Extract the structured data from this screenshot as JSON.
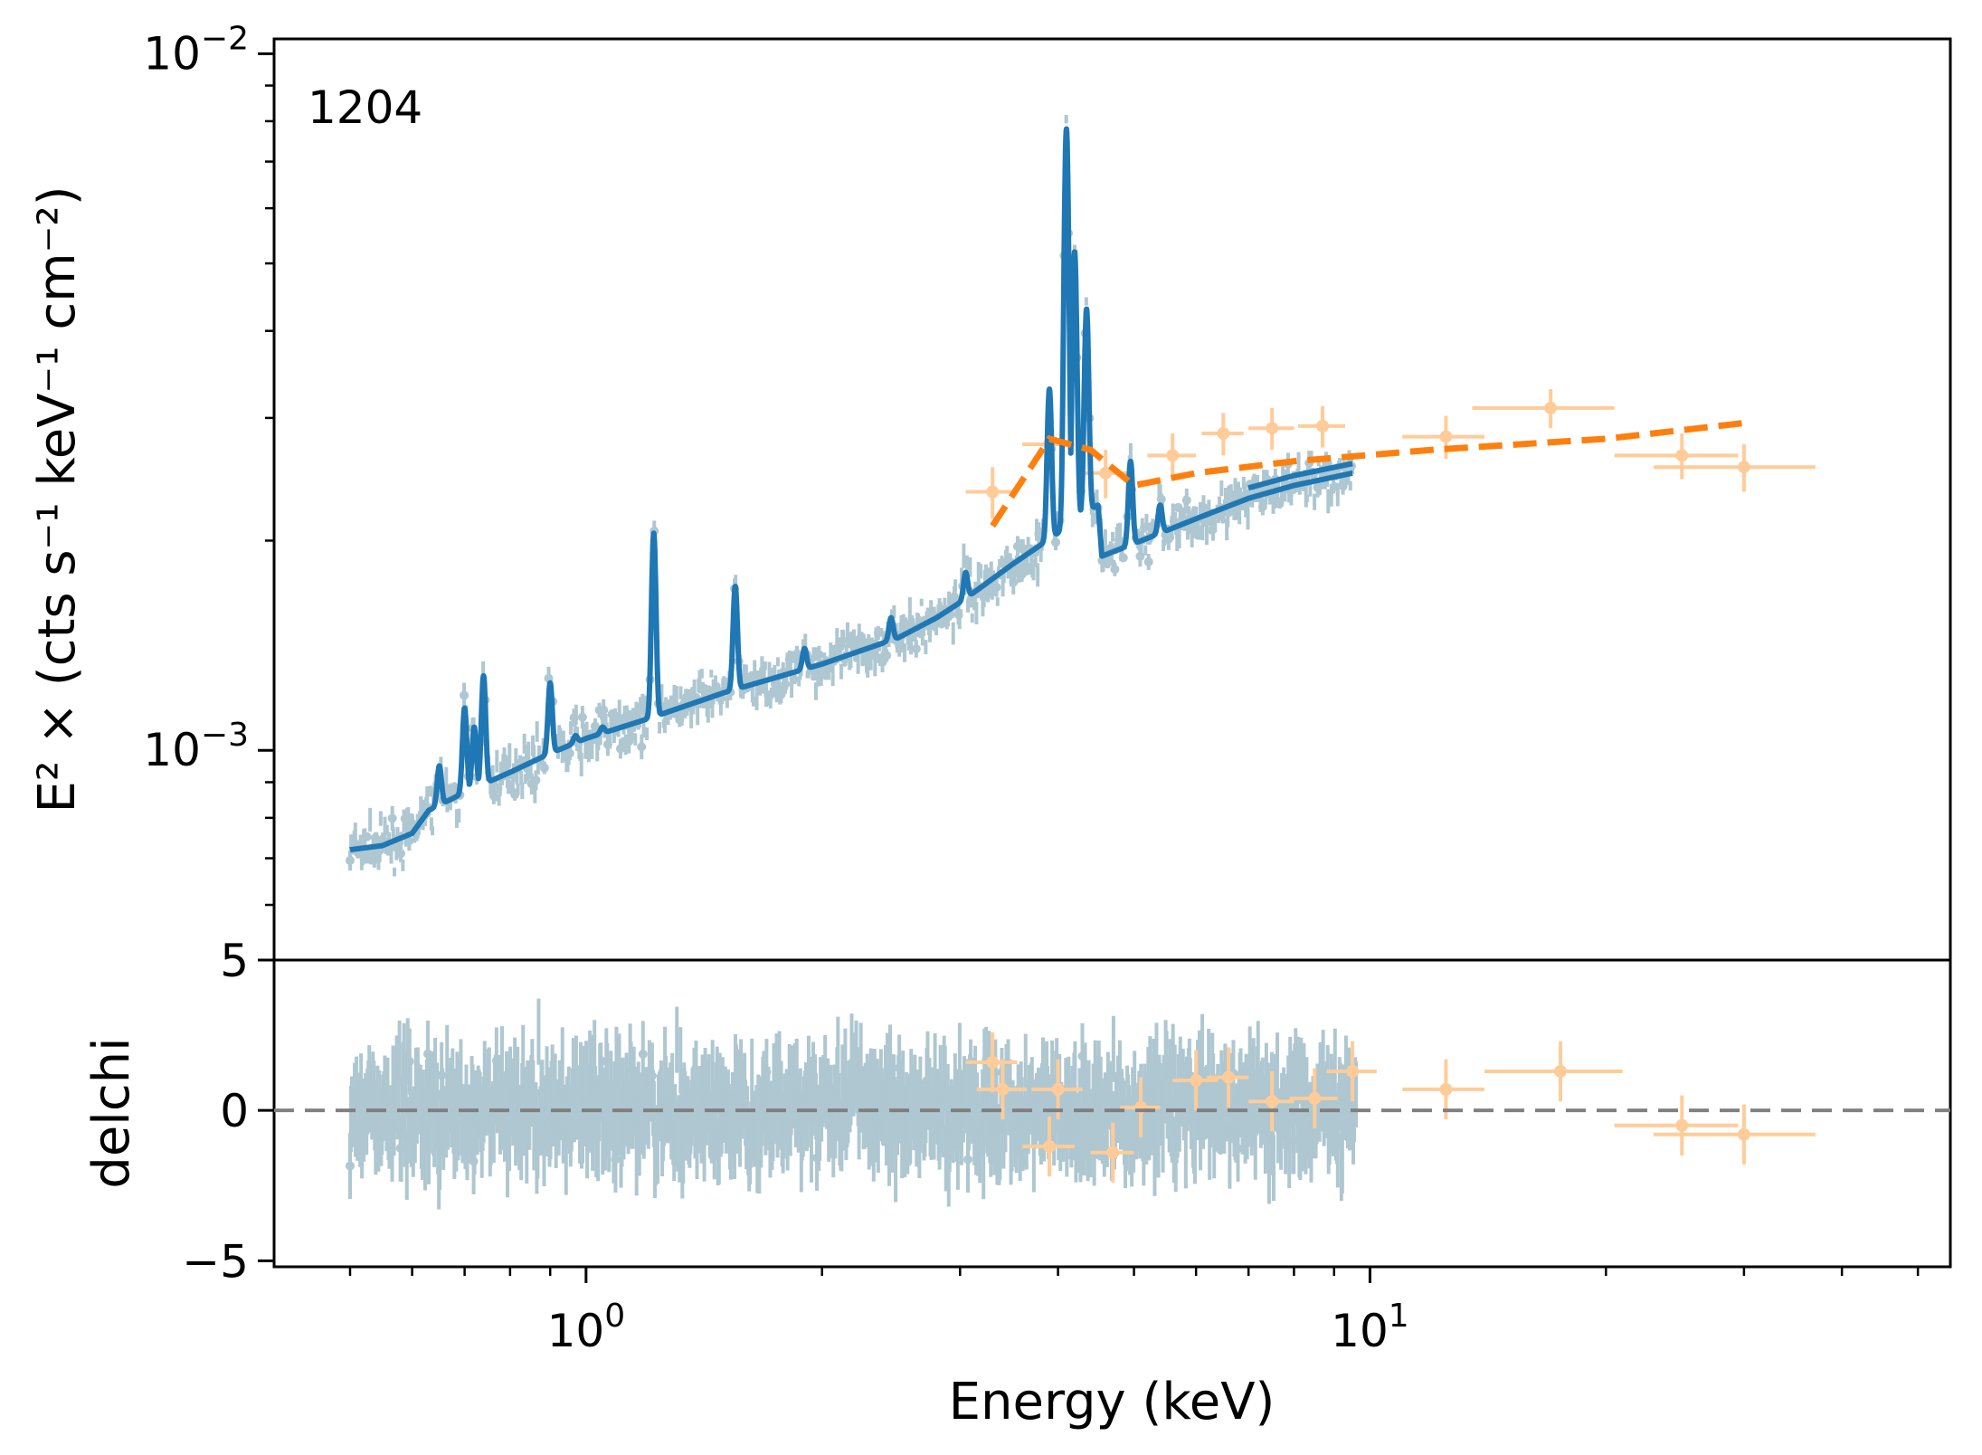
{
  "chart_data": [
    {
      "type": "line",
      "panel": "spectrum",
      "annotation": "1204",
      "xlabel": "Energy (keV)",
      "ylabel": "E² × (cts s⁻¹ keV⁻¹ cm⁻²)",
      "x_scale": "log",
      "y_scale": "log",
      "xlim": [
        0.4,
        55
      ],
      "ylim": [
        0.0005,
        0.0105
      ],
      "x_ticks": [
        {
          "value": 1,
          "base": "10",
          "exp": "0"
        },
        {
          "value": 10,
          "base": "10",
          "exp": "1"
        }
      ],
      "y_ticks": [
        {
          "value": 0.001,
          "base": "10",
          "exp": "−3"
        },
        {
          "value": 0.01,
          "base": "10",
          "exp": "−2"
        }
      ],
      "colors": {
        "data_soft": "#aec7d1",
        "model_soft": "#1f77b4",
        "data_hard": "#ffcc99",
        "model_hard": "#ff7f0e",
        "zero_line": "#808080"
      },
      "series": [
        {
          "role": "soft-model",
          "style": "solid",
          "continuum": [
            [
              0.5,
              0.00072
            ],
            [
              0.55,
              0.00073
            ],
            [
              0.6,
              0.00076
            ],
            [
              0.63,
              0.00082
            ],
            [
              0.7,
              0.00087
            ],
            [
              0.8,
              0.00093
            ],
            [
              0.9,
              0.00099
            ],
            [
              1.0,
              0.00104
            ],
            [
              1.2,
              0.00111
            ],
            [
              1.5,
              0.00121
            ],
            [
              2.0,
              0.00133
            ],
            [
              2.5,
              0.00145
            ],
            [
              2.8,
              0.00155
            ],
            [
              3.0,
              0.00163
            ],
            [
              3.5,
              0.00185
            ],
            [
              4.0,
              0.00205
            ],
            [
              4.3,
              0.00218
            ],
            [
              4.5,
              0.00225
            ],
            [
              4.55,
              0.0019
            ],
            [
              5.0,
              0.00198
            ],
            [
              6.0,
              0.00215
            ],
            [
              7.0,
              0.0023
            ],
            [
              8.0,
              0.0024
            ],
            [
              9.5,
              0.0025
            ]
          ],
          "upper_branch": [
            [
              7.0,
              0.00238
            ],
            [
              8.0,
              0.00248
            ],
            [
              9.5,
              0.00258
            ]
          ],
          "lines": [
            {
              "e": 0.65,
              "peak": 0.00095
            },
            {
              "e": 0.7,
              "peak": 0.00115
            },
            {
              "e": 0.72,
              "peak": 0.00108
            },
            {
              "e": 0.74,
              "peak": 0.00128
            },
            {
              "e": 0.9,
              "peak": 0.00125
            },
            {
              "e": 0.97,
              "peak": 0.00105
            },
            {
              "e": 1.05,
              "peak": 0.00108
            },
            {
              "e": 1.22,
              "peak": 0.00205
            },
            {
              "e": 1.55,
              "peak": 0.00172
            },
            {
              "e": 1.9,
              "peak": 0.0014
            },
            {
              "e": 2.45,
              "peak": 0.00155
            },
            {
              "e": 3.05,
              "peak": 0.0018
            },
            {
              "e": 3.9,
              "peak": 0.0033
            },
            {
              "e": 4.1,
              "peak": 0.0078
            },
            {
              "e": 4.2,
              "peak": 0.0052
            },
            {
              "e": 4.35,
              "peak": 0.0043
            },
            {
              "e": 4.95,
              "peak": 0.0026
            },
            {
              "e": 5.4,
              "peak": 0.00225
            }
          ]
        },
        {
          "role": "hard-model",
          "style": "dashed",
          "points": [
            [
              3.3,
              0.0021
            ],
            [
              3.9,
              0.0028
            ],
            [
              4.4,
              0.0027
            ],
            [
              5.0,
              0.0024
            ],
            [
              6.0,
              0.0025
            ],
            [
              8.0,
              0.0026
            ],
            [
              12.0,
              0.0027
            ],
            [
              20.0,
              0.0028
            ],
            [
              30.0,
              0.00295
            ]
          ]
        },
        {
          "role": "hard-data",
          "points": [
            {
              "x": 3.3,
              "xerr": 0.25,
              "y": 0.00235,
              "yerr": 0.0002
            },
            {
              "x": 3.9,
              "xerr": 0.3,
              "y": 0.00275,
              "yerr": 0.0002
            },
            {
              "x": 4.6,
              "xerr": 0.3,
              "y": 0.0025,
              "yerr": 0.0002
            },
            {
              "x": 5.6,
              "xerr": 0.4,
              "y": 0.00265,
              "yerr": 0.0002
            },
            {
              "x": 6.5,
              "xerr": 0.4,
              "y": 0.00285,
              "yerr": 0.0002
            },
            {
              "x": 7.5,
              "xerr": 0.5,
              "y": 0.0029,
              "yerr": 0.0002
            },
            {
              "x": 8.7,
              "xerr": 0.6,
              "y": 0.00292,
              "yerr": 0.0002
            },
            {
              "x": 12.5,
              "xerr": 1.5,
              "y": 0.00282,
              "yerr": 0.0002
            },
            {
              "x": 17.0,
              "xerr": 3.5,
              "y": 0.0031,
              "yerr": 0.0002
            },
            {
              "x": 25.0,
              "xerr": 4.5,
              "y": 0.00265,
              "yerr": 0.0002
            },
            {
              "x": 30.0,
              "xerr": 7.0,
              "y": 0.00255,
              "yerr": 0.0002
            }
          ]
        }
      ]
    },
    {
      "type": "scatter",
      "panel": "residuals",
      "xlabel": "Energy (keV)",
      "ylabel": "delchi",
      "x_scale": "log",
      "xlim": [
        0.4,
        55
      ],
      "ylim": [
        -5.2,
        5
      ],
      "y_ticks": [
        {
          "value": 5,
          "label": "5"
        },
        {
          "value": 0,
          "label": "0"
        },
        {
          "value": -5,
          "label": "−5"
        }
      ],
      "reference_line": 0,
      "soft_residual_spread": 1.2,
      "hard_residuals": [
        {
          "x": 3.3,
          "xerr": 0.25,
          "y": 1.6,
          "yerr": 1.0
        },
        {
          "x": 3.4,
          "xerr": 0.25,
          "y": 0.7,
          "yerr": 1.0
        },
        {
          "x": 3.9,
          "xerr": 0.3,
          "y": -1.2,
          "yerr": 1.0
        },
        {
          "x": 4.0,
          "xerr": 0.3,
          "y": 0.7,
          "yerr": 1.0
        },
        {
          "x": 4.7,
          "xerr": 0.3,
          "y": -1.4,
          "yerr": 1.0
        },
        {
          "x": 5.1,
          "xerr": 0.3,
          "y": 0.1,
          "yerr": 1.0
        },
        {
          "x": 6.0,
          "xerr": 0.4,
          "y": 1.0,
          "yerr": 1.0
        },
        {
          "x": 6.6,
          "xerr": 0.4,
          "y": 1.1,
          "yerr": 1.0
        },
        {
          "x": 7.5,
          "xerr": 0.5,
          "y": 0.3,
          "yerr": 1.0
        },
        {
          "x": 8.5,
          "xerr": 0.6,
          "y": 0.4,
          "yerr": 1.0
        },
        {
          "x": 9.5,
          "xerr": 0.7,
          "y": 1.3,
          "yerr": 1.0
        },
        {
          "x": 12.5,
          "xerr": 1.5,
          "y": 0.7,
          "yerr": 1.0
        },
        {
          "x": 17.5,
          "xerr": 3.5,
          "y": 1.3,
          "yerr": 1.0
        },
        {
          "x": 25.0,
          "xerr": 4.5,
          "y": -0.5,
          "yerr": 1.0
        },
        {
          "x": 30.0,
          "xerr": 7.0,
          "y": -0.8,
          "yerr": 1.0
        }
      ]
    }
  ]
}
